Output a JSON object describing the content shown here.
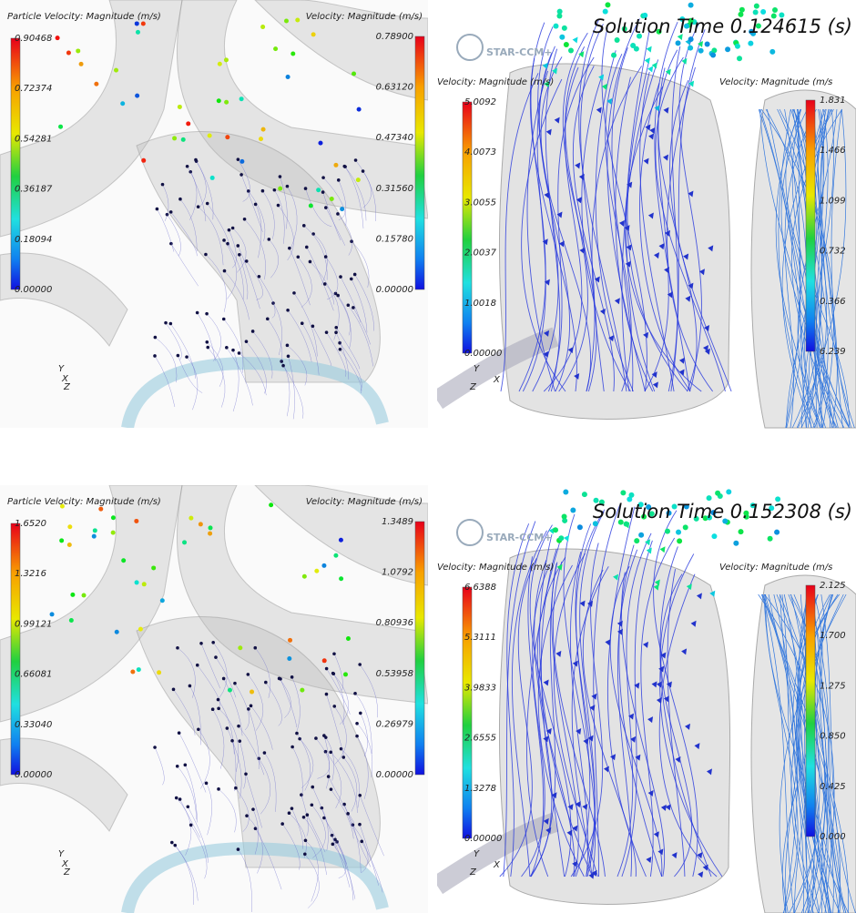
{
  "panels": [
    {
      "legends": [
        {
          "title": "Particle Velocity: Magnitude (m/s)",
          "ticks": [
            "0.90468",
            "0.72374",
            "0.54281",
            "0.36187",
            "0.18094",
            "0.00000"
          ]
        },
        {
          "title": "Velocity: Magnitude (m/s)",
          "ticks": [
            "0.78900",
            "0.63120",
            "0.47340",
            "0.31560",
            "0.15780",
            "0.00000"
          ]
        }
      ],
      "triad": [
        "Y",
        "X",
        "Z"
      ]
    },
    {
      "solution_time": "Solution Time 0.124615 (s)",
      "logo": "STAR-CCM+",
      "legends": [
        {
          "title": "Velocity: Magnitude (m/s)",
          "ticks": [
            "5.0092",
            "4.0073",
            "3.0055",
            "2.0037",
            "1.0018",
            "0.00000"
          ]
        },
        {
          "title": "Velocity: Magnitude (m/s",
          "ticks": [
            "1.831",
            "1.466",
            "1.099",
            "0.732",
            "0.366",
            "6.239"
          ]
        }
      ],
      "triad": [
        "Y",
        "Z",
        "X"
      ]
    },
    {
      "legends": [
        {
          "title": "Particle Velocity: Magnitude (m/s)",
          "ticks": [
            "1.6520",
            "1.3216",
            "0.99121",
            "0.66081",
            "0.33040",
            "0.00000"
          ]
        },
        {
          "title": "Velocity: Magnitude (m/s)",
          "ticks": [
            "1.3489",
            "1.0792",
            "0.80936",
            "0.53958",
            "0.26979",
            "0.00000"
          ]
        }
      ],
      "triad": [
        "Y",
        "X",
        "Z"
      ]
    },
    {
      "solution_time": "Solution Time 0.152308 (s)",
      "logo": "STAR-CCM+",
      "legends": [
        {
          "title": "Velocity: Magnitude (m/s)",
          "ticks": [
            "6.6388",
            "5.3111",
            "3.9833",
            "2.6555",
            "1.3278",
            "0.00000"
          ]
        },
        {
          "title": "Velocity: Magnitude (m/s",
          "ticks": [
            "2.125",
            "1.700",
            "1.275",
            "0.850",
            "0.425",
            "0.000"
          ]
        }
      ],
      "triad": [
        "Y",
        "Z",
        "X"
      ]
    }
  ]
}
